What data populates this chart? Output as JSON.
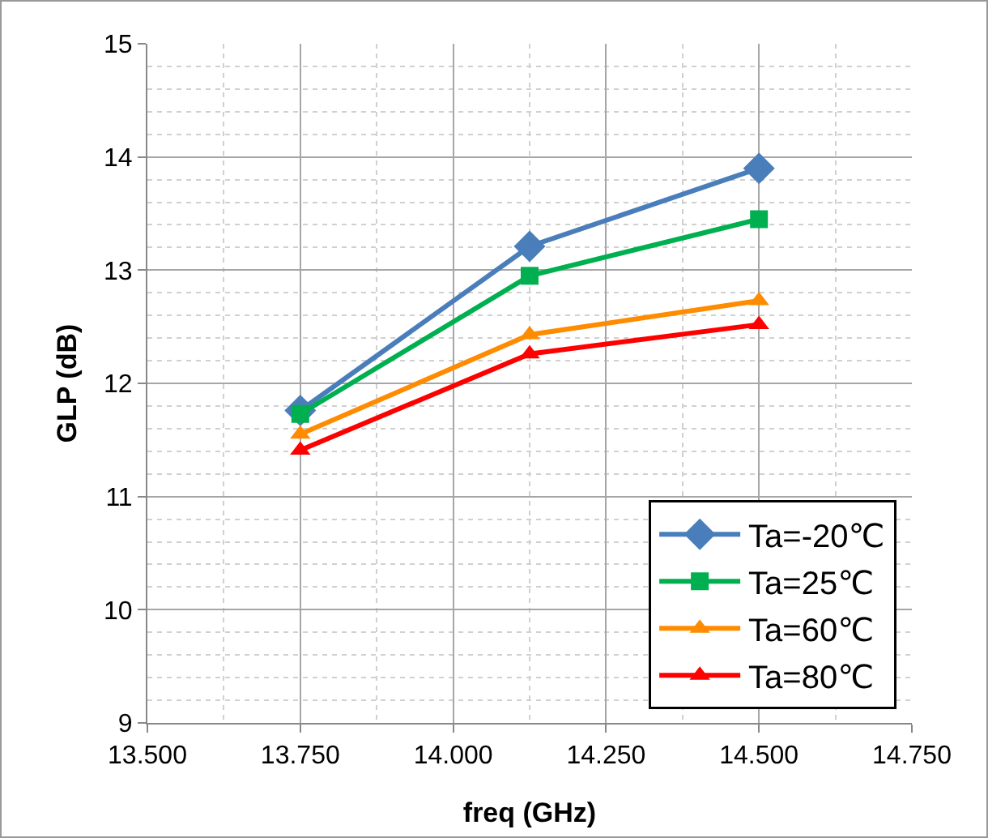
{
  "chart_data": {
    "type": "line",
    "xlabel": "freq (GHz)",
    "ylabel": "GLP (dB)",
    "x": [
      13.75,
      14.125,
      14.5
    ],
    "series": [
      {
        "name": "Ta=-20℃",
        "color": "#4a7ebb",
        "marker": "diamond",
        "values": [
          11.76,
          13.21,
          13.9
        ]
      },
      {
        "name": "Ta=25℃",
        "color": "#00b050",
        "marker": "square",
        "values": [
          11.73,
          12.95,
          13.45
        ]
      },
      {
        "name": "Ta=60℃",
        "color": "#ff8c00",
        "marker": "triangle",
        "values": [
          11.55,
          12.43,
          12.73
        ]
      },
      {
        "name": "Ta=80℃",
        "color": "#ff0000",
        "marker": "triangle",
        "values": [
          11.41,
          12.26,
          12.52
        ]
      }
    ],
    "xlim": [
      13.5,
      14.75
    ],
    "xticks": [
      {
        "value": 13.5,
        "label": "13.500"
      },
      {
        "value": 13.75,
        "label": "13.750"
      },
      {
        "value": 14,
        "label": "14.000"
      },
      {
        "value": 14.25,
        "label": "14.250"
      },
      {
        "value": 14.5,
        "label": "14.500"
      },
      {
        "value": 14.75,
        "label": "14.750"
      }
    ],
    "ylim": [
      9,
      15
    ],
    "yticks": [
      9,
      10,
      11,
      12,
      13,
      14,
      15
    ],
    "grid": true,
    "legend": "bottom right",
    "line_style": "solid"
  }
}
